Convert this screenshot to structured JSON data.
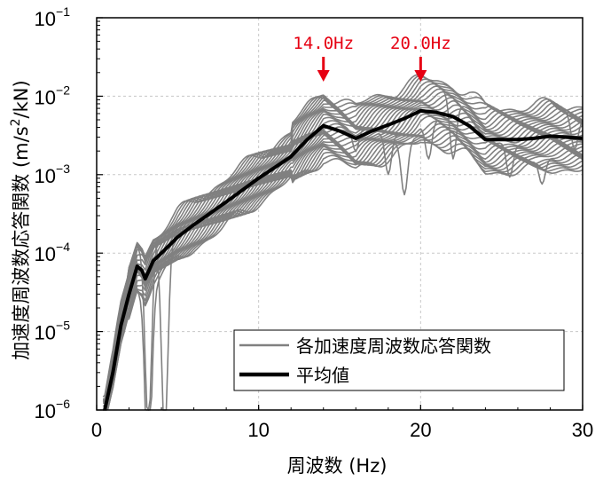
{
  "chart_data": {
    "type": "line",
    "xlabel": "周波数 (Hz)",
    "ylabel": "加速度周波数応答関数 (m/s2/kN)",
    "ylabel_main": "加速度周波数応答関数 (m/s",
    "ylabel_sup": "2",
    "ylabel_tail": "/kN)",
    "xlim": [
      0,
      30
    ],
    "ylim": [
      1e-06,
      0.1
    ],
    "yscale": "log",
    "x_ticks": [
      "0",
      "10",
      "20",
      "30"
    ],
    "y_ticks": [
      {
        "base": "10",
        "exp": "−6"
      },
      {
        "base": "10",
        "exp": "−5"
      },
      {
        "base": "10",
        "exp": "−4"
      },
      {
        "base": "10",
        "exp": "−3"
      },
      {
        "base": "10",
        "exp": "−2"
      },
      {
        "base": "10",
        "exp": "−1"
      }
    ],
    "grid": true,
    "legend_position": "bottom-right",
    "legend": [
      "各加速度周波数応答関数",
      "平均値"
    ],
    "annotations": [
      {
        "text": "14.0Hz",
        "x": 14.0
      },
      {
        "text": "20.0Hz",
        "x": 20.0
      }
    ],
    "colors": {
      "individual": "#808080",
      "mean": "#000000",
      "annotation": "#e60012"
    },
    "mean_series": {
      "name": "平均値",
      "x": [
        0.5,
        1,
        1.5,
        2,
        2.5,
        2.8,
        3,
        3.5,
        4,
        5,
        6,
        8,
        10,
        12,
        13,
        14,
        15,
        16,
        17,
        18,
        19,
        20,
        21,
        22,
        23,
        24,
        25,
        26,
        27,
        28,
        29,
        30
      ],
      "y": [
        1e-06,
        3e-06,
        1.2e-05,
        3e-05,
        6.8e-05,
        6e-05,
        4.7e-05,
        8e-05,
        0.0001,
        0.00016,
        0.00023,
        0.00045,
        0.0009,
        0.0017,
        0.0028,
        0.0042,
        0.0036,
        0.0029,
        0.0036,
        0.0043,
        0.0052,
        0.0065,
        0.0062,
        0.0055,
        0.0042,
        0.0028,
        0.0028,
        0.0028,
        0.0029,
        0.0031,
        0.003,
        0.0029
      ]
    }
  }
}
